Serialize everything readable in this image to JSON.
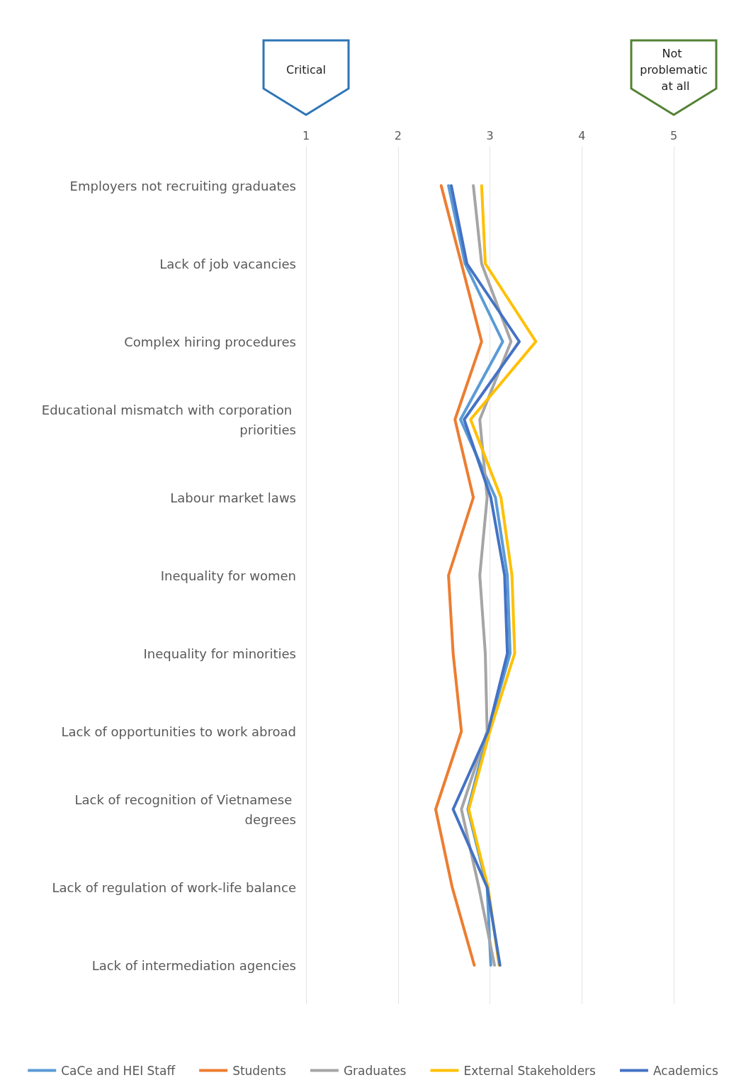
{
  "chart_data": {
    "type": "line",
    "orientation": "horizontal",
    "categories": [
      "Employers not recruiting graduates",
      "Lack of job vacancies",
      "Complex hiring procedures",
      "Educational mismatch with corporation priorities",
      "Labour market laws",
      "Inequality for women",
      "Inequality for minorities",
      "Lack of opportunities to work abroad",
      "Lack of recognition of Vietnamese degrees",
      "Lack of regulation of work-life balance",
      "Lack of intermediation agencies"
    ],
    "series": [
      {
        "name": "CaCe and HEI Staff",
        "color": "#5b9bd5",
        "values": [
          2.55,
          2.73,
          3.14,
          2.68,
          3.06,
          3.19,
          3.22,
          2.98,
          2.76,
          2.97,
          3.01
        ]
      },
      {
        "name": "Students",
        "color": "#ed7d31",
        "values": [
          2.47,
          2.69,
          2.91,
          2.62,
          2.82,
          2.55,
          2.6,
          2.69,
          2.41,
          2.59,
          2.83
        ]
      },
      {
        "name": "Graduates",
        "color": "#a5a5a5",
        "values": [
          2.82,
          2.91,
          3.23,
          2.89,
          2.97,
          2.89,
          2.95,
          2.97,
          2.69,
          2.88,
          3.05
        ]
      },
      {
        "name": "External Stakeholders",
        "color": "#ffc000",
        "values": [
          2.91,
          2.95,
          3.5,
          2.79,
          3.12,
          3.24,
          3.27,
          3.0,
          2.77,
          2.98,
          3.1
        ]
      },
      {
        "name": "Academics",
        "color": "#4472c4",
        "values": [
          2.58,
          2.75,
          3.32,
          2.72,
          3.01,
          3.16,
          3.19,
          2.98,
          2.6,
          2.97,
          3.11
        ]
      }
    ],
    "xlim": [
      1,
      5
    ],
    "xticks": [
      1,
      2,
      3,
      4,
      5
    ],
    "grid": "x",
    "legend": "bottom",
    "marker": "none",
    "line_style": "solid",
    "annotations": [
      "Critical",
      "Not problematic at all"
    ]
  }
}
